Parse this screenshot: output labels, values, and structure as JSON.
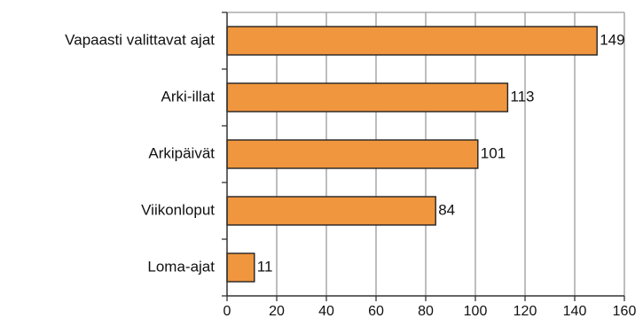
{
  "chart_data": {
    "type": "bar",
    "orientation": "horizontal",
    "categories": [
      "Vapaasti valittavat ajat",
      "Arki-illat",
      "Arkipäivät",
      "Viikonloput",
      "Loma-ajat"
    ],
    "values": [
      149,
      113,
      101,
      84,
      11
    ],
    "value_labels": [
      "149",
      "113",
      "101",
      "84",
      "11"
    ],
    "xlim": [
      0,
      160
    ],
    "xticks": [
      0,
      20,
      40,
      60,
      80,
      100,
      120,
      140,
      160
    ],
    "grid": "vertical",
    "colors": {
      "bar_fill": "#f0963e",
      "bar_stroke": "#222222",
      "grid": "#9a9a9a",
      "axis": "#333333"
    }
  }
}
